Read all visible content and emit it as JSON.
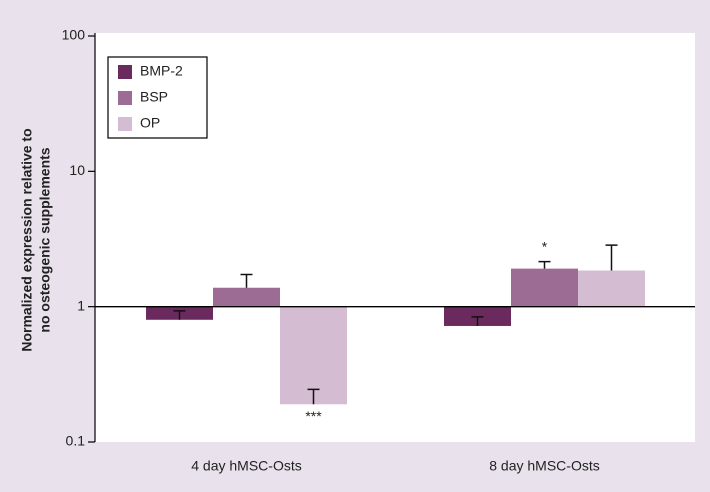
{
  "chart_data": {
    "type": "bar",
    "log_scale": true,
    "baseline": 1,
    "ylabel": [
      "Normalized expression relative to",
      "no osteogenic supplements"
    ],
    "categories": [
      "4 day hMSC-Osts",
      "8 day hMSC-Osts"
    ],
    "series": [
      {
        "name": "BMP-2",
        "color": "#6b2a5e",
        "values": [
          0.8,
          0.72
        ],
        "errors": [
          0.13,
          0.12
        ]
      },
      {
        "name": "BSP",
        "color": "#9c6c95",
        "values": [
          1.38,
          1.91
        ],
        "errors": [
          0.35,
          0.24
        ]
      },
      {
        "name": "OP",
        "color": "#d4bcd2",
        "values": [
          0.19,
          1.85
        ],
        "errors": [
          0.055,
          1.0
        ]
      }
    ],
    "annotations": [
      {
        "text": "***",
        "series": 2,
        "category": 0
      },
      {
        "text": "*",
        "series": 1,
        "category": 1
      }
    ],
    "ylim": [
      0.1,
      100
    ],
    "yticks": [
      0.1,
      1,
      10,
      100
    ],
    "legend": "upper left"
  }
}
